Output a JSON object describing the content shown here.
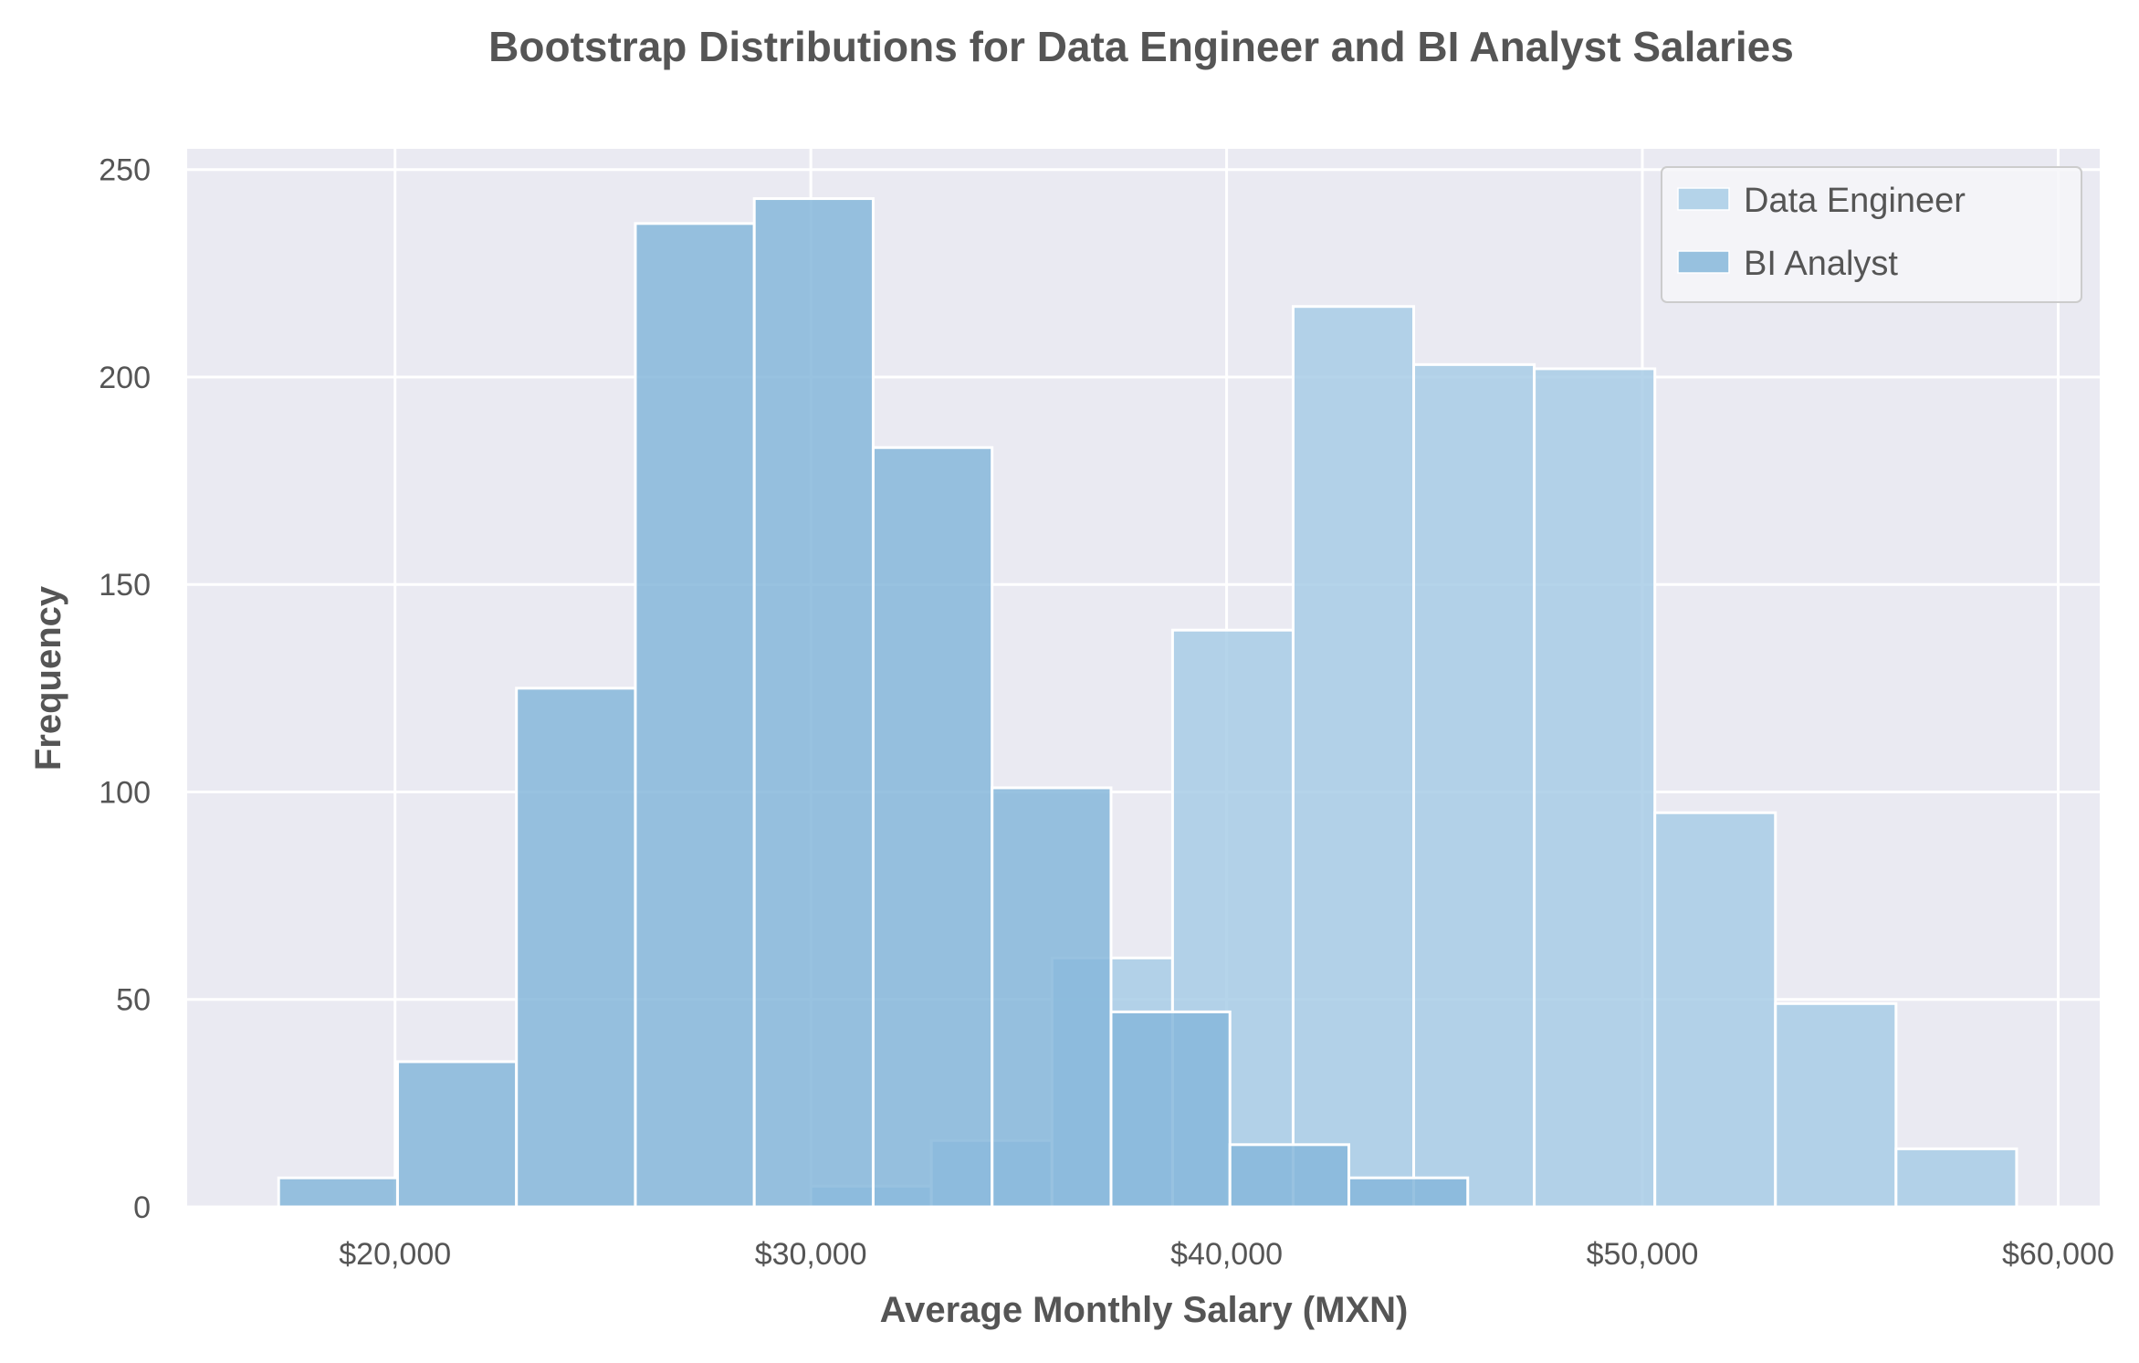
{
  "chart_data": {
    "type": "histogram",
    "title": "Bootstrap Distributions for Data Engineer and BI Analyst Salaries",
    "xlabel": "Average Monthly Salary (MXN)",
    "ylabel": "Frequency",
    "xlim": [
      15000,
      61000
    ],
    "ylim": [
      0,
      255
    ],
    "x_ticks": [
      20000,
      30000,
      40000,
      50000,
      60000
    ],
    "x_tick_labels": [
      "$20,000",
      "$30,000",
      "$40,000",
      "$50,000",
      "$60,000"
    ],
    "y_ticks": [
      0,
      50,
      100,
      150,
      200,
      250
    ],
    "y_tick_labels": [
      "0",
      "50",
      "100",
      "150",
      "200",
      "250"
    ],
    "grid": true,
    "legend_position": "top-right",
    "series": [
      {
        "name": "Data Engineer",
        "color": "#a8cde6",
        "bins": [
          {
            "x0": 30000,
            "x1": 32900,
            "count": 5
          },
          {
            "x0": 32900,
            "x1": 35800,
            "count": 16
          },
          {
            "x0": 35800,
            "x1": 38700,
            "count": 60
          },
          {
            "x0": 38700,
            "x1": 41600,
            "count": 139
          },
          {
            "x0": 41600,
            "x1": 44500,
            "count": 217
          },
          {
            "x0": 44500,
            "x1": 47400,
            "count": 203
          },
          {
            "x0": 47400,
            "x1": 50300,
            "count": 202
          },
          {
            "x0": 50300,
            "x1": 53200,
            "count": 95
          },
          {
            "x0": 53200,
            "x1": 56100,
            "count": 49
          },
          {
            "x0": 56100,
            "x1": 59000,
            "count": 14
          }
        ]
      },
      {
        "name": "BI Analyst",
        "color": "#86b7db",
        "bins": [
          {
            "x0": 17200,
            "x1": 20060,
            "count": 7
          },
          {
            "x0": 20060,
            "x1": 22920,
            "count": 35
          },
          {
            "x0": 22920,
            "x1": 25780,
            "count": 125
          },
          {
            "x0": 25780,
            "x1": 28640,
            "count": 237
          },
          {
            "x0": 28640,
            "x1": 31500,
            "count": 243
          },
          {
            "x0": 31500,
            "x1": 34360,
            "count": 183
          },
          {
            "x0": 34360,
            "x1": 37220,
            "count": 101
          },
          {
            "x0": 37220,
            "x1": 40080,
            "count": 47
          },
          {
            "x0": 40080,
            "x1": 42940,
            "count": 15
          },
          {
            "x0": 42940,
            "x1": 45800,
            "count": 7
          }
        ]
      }
    ]
  }
}
